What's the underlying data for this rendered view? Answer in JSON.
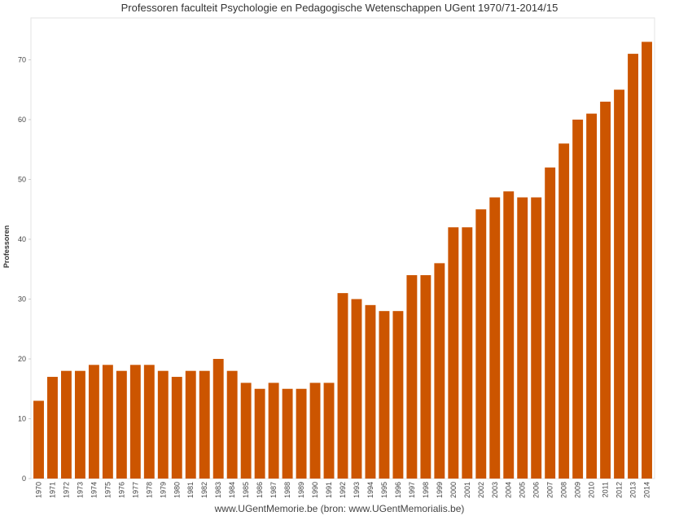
{
  "chart_data": {
    "type": "bar",
    "title": "Professoren faculteit Psychologie en Pedagogische Wetenschappen UGent 1970/71-2014/15",
    "xlabel": "",
    "ylabel": "Professoren",
    "ylim": [
      0,
      77
    ],
    "yticks": [
      0,
      10,
      20,
      30,
      40,
      50,
      60,
      70
    ],
    "grid": false,
    "bar_color": "#cc5500",
    "categories": [
      "1970",
      "1971",
      "1972",
      "1973",
      "1974",
      "1975",
      "1976",
      "1977",
      "1978",
      "1979",
      "1980",
      "1981",
      "1982",
      "1983",
      "1984",
      "1985",
      "1986",
      "1987",
      "1988",
      "1989",
      "1990",
      "1991",
      "1992",
      "1993",
      "1994",
      "1995",
      "1996",
      "1997",
      "1998",
      "1999",
      "2000",
      "2001",
      "2002",
      "2003",
      "2004",
      "2005",
      "2006",
      "2007",
      "2008",
      "2009",
      "2010",
      "2011",
      "2012",
      "2013",
      "2014"
    ],
    "values": [
      13,
      17,
      18,
      18,
      19,
      19,
      18,
      19,
      19,
      18,
      17,
      18,
      18,
      20,
      18,
      16,
      15,
      16,
      15,
      15,
      16,
      16,
      31,
      30,
      29,
      28,
      28,
      34,
      34,
      36,
      42,
      42,
      45,
      47,
      48,
      47,
      47,
      52,
      56,
      60,
      61,
      63,
      65,
      71,
      73
    ]
  },
  "footer": {
    "source": "www.UGentMemorie.be (bron: www.UGentMemorialis.be)"
  }
}
